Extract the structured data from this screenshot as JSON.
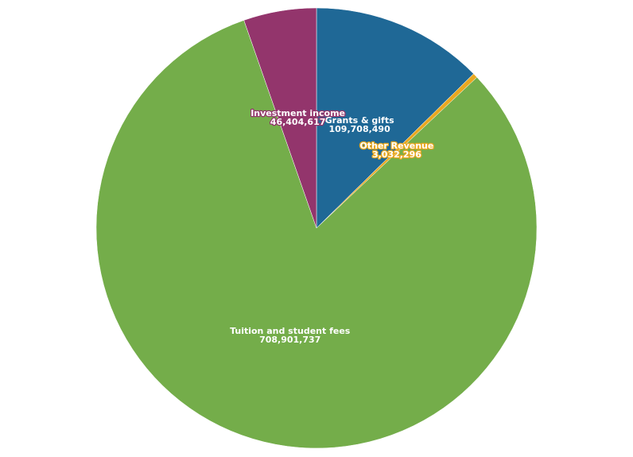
{
  "chart_data": {
    "type": "pie",
    "categories": [
      "Grants & gifts",
      "Other Revenue",
      "Tuition and student fees",
      "Investment income"
    ],
    "values": [
      109708490,
      3032296,
      708901737,
      46404617
    ],
    "value_labels": [
      "109,708,490",
      "3,032,296",
      "708,901,737",
      "46,404,617"
    ],
    "colors": [
      "#1f6896",
      "#e9a820",
      "#74ad4a",
      "#93356c"
    ]
  }
}
